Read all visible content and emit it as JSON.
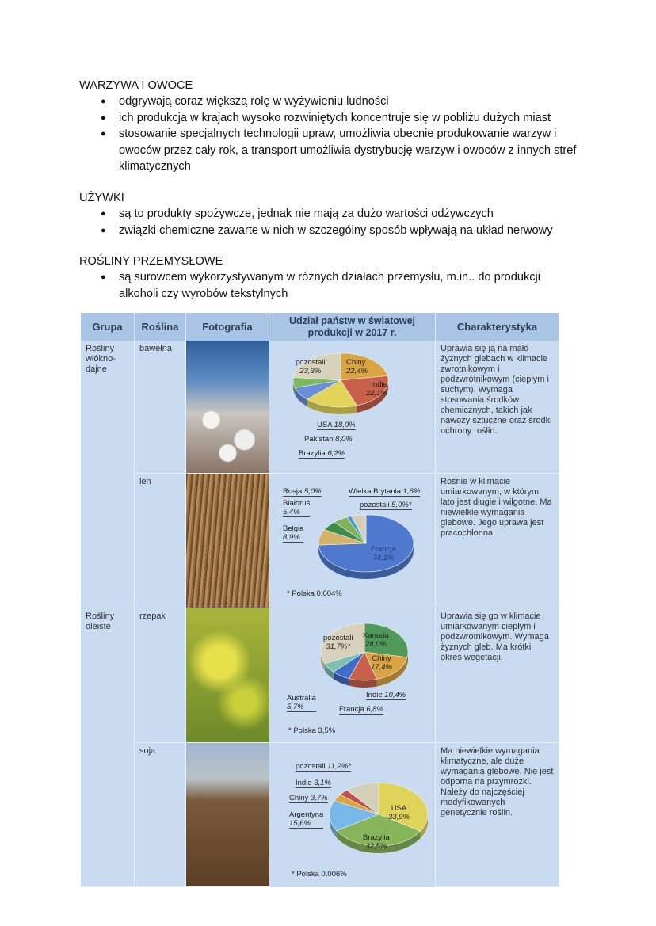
{
  "sections": [
    {
      "heading": "WARZYWA I OWOCE",
      "bullets": [
        "odgrywają coraz większą rolę w wyżywieniu ludności",
        "ich produkcja w krajach wysoko rozwiniętych koncentruje się w pobliżu dużych miast",
        "stosowanie specjalnych technologii upraw, umożliwia obecnie produkowanie warzyw i owoców przez cały rok, a transport umożliwia dystrybucję warzyw i owoców z innych stref klimatycznych"
      ]
    },
    {
      "heading": "UŻYWKI",
      "bullets": [
        "są to produkty spożywcze, jednak nie mają za dużo wartości odżywczych",
        "związki chemiczne zawarte w nich w szczególny sposób wpływają na układ nerwowy"
      ]
    },
    {
      "heading": "ROŚLINY PRZEMYSŁOWE",
      "bullets": [
        "są surowcem wykorzystywanym w różnych działach przemysłu, m.in.. do produkcji alkoholi czy wyrobów tekstylnych"
      ]
    }
  ],
  "table": {
    "headers": [
      "Grupa",
      "Roślina",
      "Fotografia",
      "Udział państw w światowej produkcji w 2017 r.",
      "Charakterystyka"
    ],
    "groups": [
      "Rośliny włókno-dajne",
      "Rośliny oleiste"
    ],
    "rows": [
      {
        "plant": "bawełna",
        "characteristic": "Uprawia się ją na mało żyznych glebach w klimacie zwrotnikowym i podzwrotnikowym (ciepłym i suchym). Wymaga stosowania środków chemicznych, takich jak nawozy sztuczne oraz środki ochrony roślin."
      },
      {
        "plant": "len",
        "characteristic": "Rośnie w klimacie umiarkowanym, w którym lato jest długie i wilgotne. Ma niewielkie wymagania glebowe. Jego uprawa jest pracochłonna."
      },
      {
        "plant": "rzepak",
        "characteristic": "Uprawia się go w klimacie umiarkowanym ciepłym i podzwrotnikowym. Wymaga żyznych gleb. Ma krótki okres wegetacji."
      },
      {
        "plant": "soja",
        "characteristic": "Ma niewielkie wymagania klimatyczne, ale duże wymagania glebowe. Nie jest odporna na przymrozki. Należy do najczęściej modyfikowanych genetycznie roślin."
      }
    ]
  },
  "chart_data": [
    {
      "type": "pie",
      "title": "",
      "note": "",
      "slices": [
        {
          "name": "Chiny",
          "value": 22.4,
          "label": "22,4%",
          "color": "#d9a441"
        },
        {
          "name": "Indie",
          "value": 22.1,
          "label": "22,1%",
          "color": "#c8604a"
        },
        {
          "name": "USA",
          "value": 18.0,
          "label": "18,0%",
          "color": "#e2d35a"
        },
        {
          "name": "Pakistan",
          "value": 8.0,
          "label": "8,0%",
          "color": "#6a8fd8"
        },
        {
          "name": "Brazylia",
          "value": 6.2,
          "label": "6,2%",
          "color": "#7cb960"
        },
        {
          "name": "pozostali",
          "value": 23.3,
          "label": "23,3%",
          "color": "#d8d2bd"
        }
      ]
    },
    {
      "type": "pie",
      "title": "",
      "note": "* Polska 0,004%",
      "slices": [
        {
          "name": "Francja",
          "value": 74.1,
          "label": "74,1%",
          "color": "#4f79cf"
        },
        {
          "name": "Belgia",
          "value": 8.9,
          "label": "8,9%",
          "color": "#d3b26a"
        },
        {
          "name": "Białoruś",
          "value": 5.4,
          "label": "5,4%",
          "color": "#3f8a4d"
        },
        {
          "name": "Rosja",
          "value": 5.0,
          "label": "5,0%",
          "color": "#7fb35a"
        },
        {
          "name": "Wielka Brytania",
          "value": 1.6,
          "label": "1,6%",
          "color": "#3b9ad0"
        },
        {
          "name": "pozostali",
          "value": 5.0,
          "label": "5,0%*",
          "color": "#d4cfbb"
        }
      ]
    },
    {
      "type": "pie",
      "title": "",
      "note": "* Polska 3,5%",
      "slices": [
        {
          "name": "Kanada",
          "value": 28.0,
          "label": "28,0%",
          "color": "#4f9a5a"
        },
        {
          "name": "Chiny",
          "value": 17.4,
          "label": "17,4%",
          "color": "#d9a441"
        },
        {
          "name": "Indie",
          "value": 10.4,
          "label": "10,4%",
          "color": "#c8604a"
        },
        {
          "name": "Francja",
          "value": 6.8,
          "label": "6,8%",
          "color": "#3f6cc8"
        },
        {
          "name": "Australia",
          "value": 5.7,
          "label": "5,7%",
          "color": "#7cc0b0"
        },
        {
          "name": "pozostali",
          "value": 31.7,
          "label": "31,7%*",
          "color": "#d8d2bd"
        }
      ]
    },
    {
      "type": "pie",
      "title": "",
      "note": "* Polska 0,006%",
      "slices": [
        {
          "name": "USA",
          "value": 33.9,
          "label": "33,9%",
          "color": "#e0d35a"
        },
        {
          "name": "Brazylia",
          "value": 32.5,
          "label": "32,5%",
          "color": "#86b55a"
        },
        {
          "name": "Argentyna",
          "value": 15.6,
          "label": "15,6%",
          "color": "#78b8e8"
        },
        {
          "name": "Chiny",
          "value": 3.7,
          "label": "3,7%",
          "color": "#d9a441"
        },
        {
          "name": "Indie",
          "value": 3.1,
          "label": "3,1%",
          "color": "#c0504a"
        },
        {
          "name": "pozostali",
          "value": 11.2,
          "label": "11,2%*",
          "color": "#d4cfbb"
        }
      ]
    }
  ]
}
